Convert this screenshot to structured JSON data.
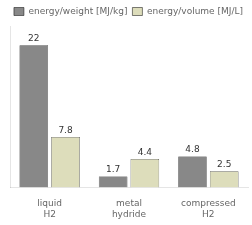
{
  "chart_data": {
    "type": "bar",
    "categories": [
      "liquid\nH2",
      "metal\nhydride",
      "compressed\nH2"
    ],
    "series": [
      {
        "name": "energy/weight [MJ/kg]",
        "color": "#888888",
        "values": [
          22,
          1.7,
          4.8
        ]
      },
      {
        "name": "energy/volume [MJ/L]",
        "color": "#ddddbb",
        "values": [
          7.8,
          4.4,
          2.5
        ]
      }
    ],
    "ylim": [
      0,
      25
    ],
    "tick_labels": "x",
    "data_labels": true,
    "legend": "upper right",
    "grid": false
  }
}
